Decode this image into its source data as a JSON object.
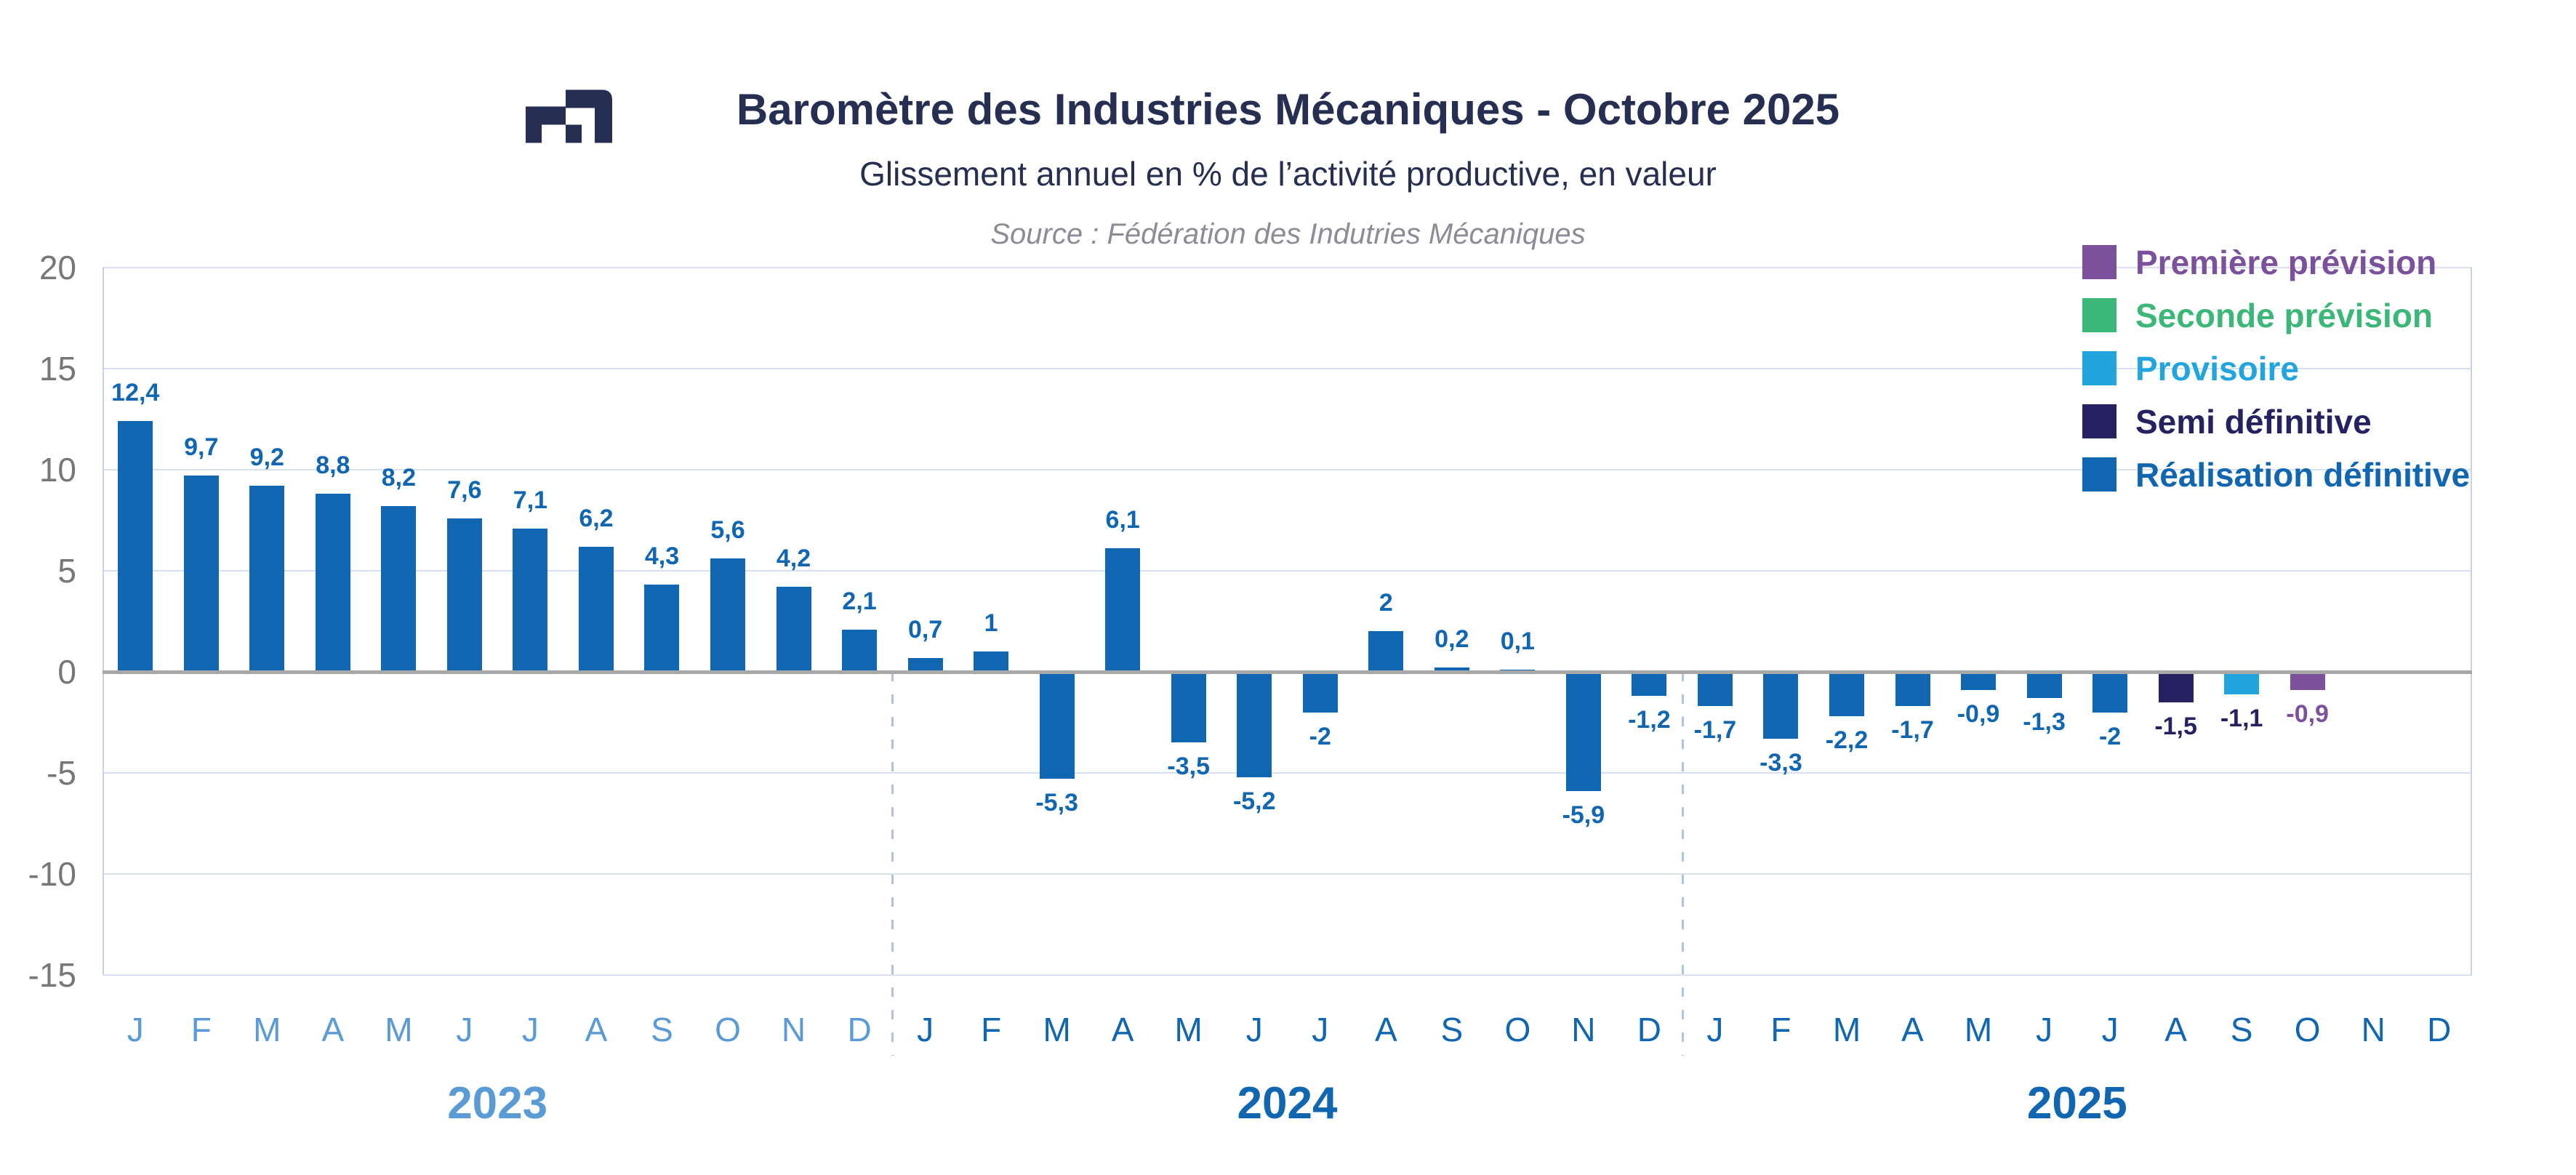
{
  "header": {
    "title": "Baromètre des Industries Mécaniques - Octobre 2025",
    "subtitle": "Glissement annuel en % de l’activité productive, en valeur",
    "source": "Source : Fédération des Indutries Mécaniques",
    "logo": "fim-logo"
  },
  "legend": {
    "items": [
      {
        "label": "Première prévision",
        "series": "premiere_prevision",
        "color": "#7B519C"
      },
      {
        "label": "Seconde prévision",
        "series": "seconde_prevision",
        "color": "#3BB778"
      },
      {
        "label": "Provisoire",
        "series": "provisoire",
        "color": "#22A5DE"
      },
      {
        "label": "Semi définitive",
        "series": "semi_definitive",
        "color": "#262262"
      },
      {
        "label": "Réalisation définitive",
        "series": "realisation_definitive",
        "color": "#1066B1"
      }
    ]
  },
  "colors": {
    "gridline": "#D9E1F0",
    "zero_line": "#A8A8A8",
    "plot_border": "#C9D1E4",
    "year_separator": "#AFC3E0",
    "axis_tick_text": "#777777",
    "title_text": "#262E52",
    "source_text": "#8C8C96"
  },
  "chart_data": {
    "type": "bar",
    "title": "Baromètre des Industries Mécaniques - Octobre 2025",
    "subtitle": "Glissement annuel en % de l’activité productive, en valeur",
    "ylabel": "",
    "xlabel": "",
    "ylim": [
      -15,
      20
    ],
    "yticks": [
      20,
      15,
      10,
      5,
      0,
      -5,
      -10,
      -15
    ],
    "grid": true,
    "legend_position": "top-right",
    "series_colors": {
      "premiere_prevision": "#7B519C",
      "seconde_prevision": "#3BB778",
      "provisoire": "#22A5DE",
      "semi_definitive": "#262262",
      "realisation_definitive": "#1066B1"
    },
    "label_colors": {
      "premiere_prevision": "#7B519C",
      "seconde_prevision": "#3BB778",
      "provisoire": "#262262",
      "semi_definitive": "#262262",
      "realisation_definitive": "#1066B1"
    },
    "years": [
      {
        "label": "2023",
        "axis_color": "#5B9BD5",
        "months": [
          "J",
          "F",
          "M",
          "A",
          "M",
          "J",
          "J",
          "A",
          "S",
          "O",
          "N",
          "D"
        ],
        "values": [
          12.4,
          9.7,
          9.2,
          8.8,
          8.2,
          7.6,
          7.1,
          6.2,
          4.3,
          5.6,
          4.2,
          2.1
        ],
        "labels": [
          "12,4",
          "9,7",
          "9,2",
          "8,8",
          "8,2",
          "7,6",
          "7,1",
          "6,2",
          "4,3",
          "5,6",
          "4,2",
          "2,1"
        ],
        "series": [
          "realisation_definitive",
          "realisation_definitive",
          "realisation_definitive",
          "realisation_definitive",
          "realisation_definitive",
          "realisation_definitive",
          "realisation_definitive",
          "realisation_definitive",
          "realisation_definitive",
          "realisation_definitive",
          "realisation_definitive",
          "realisation_definitive"
        ]
      },
      {
        "label": "2024",
        "axis_color": "#1066B1",
        "months": [
          "J",
          "F",
          "M",
          "A",
          "M",
          "J",
          "J",
          "A",
          "S",
          "O",
          "N",
          "D"
        ],
        "values": [
          0.7,
          1,
          -5.3,
          6.1,
          -3.5,
          -5.2,
          -2,
          2,
          0.2,
          0.1,
          -5.9,
          -1.2
        ],
        "labels": [
          "0,7",
          "1",
          "-5,3",
          "6,1",
          "-3,5",
          "-5,2",
          "-2",
          "2",
          "0,2",
          "0,1",
          "-5,9",
          "-1,2"
        ],
        "series": [
          "realisation_definitive",
          "realisation_definitive",
          "realisation_definitive",
          "realisation_definitive",
          "realisation_definitive",
          "realisation_definitive",
          "realisation_definitive",
          "realisation_definitive",
          "realisation_definitive",
          "realisation_definitive",
          "realisation_definitive",
          "realisation_definitive"
        ]
      },
      {
        "label": "2025",
        "axis_color": "#1066B1",
        "months": [
          "J",
          "F",
          "M",
          "A",
          "M",
          "J",
          "J",
          "A",
          "S",
          "O",
          "N",
          "D"
        ],
        "values": [
          -1.7,
          -3.3,
          -2.2,
          -1.7,
          -0.9,
          -1.3,
          -2,
          -1.5,
          -1.1,
          -0.9,
          null,
          null
        ],
        "labels": [
          "-1,7",
          "-3,3",
          "-2,2",
          "-1,7",
          "-0,9",
          "-1,3",
          "-2",
          "-1,5",
          "-1,1",
          "-0,9",
          null,
          null
        ],
        "series": [
          "realisation_definitive",
          "realisation_definitive",
          "realisation_definitive",
          "realisation_definitive",
          "realisation_definitive",
          "realisation_definitive",
          "realisation_definitive",
          "semi_definitive",
          "provisoire",
          "premiere_prevision",
          null,
          null
        ]
      }
    ]
  }
}
